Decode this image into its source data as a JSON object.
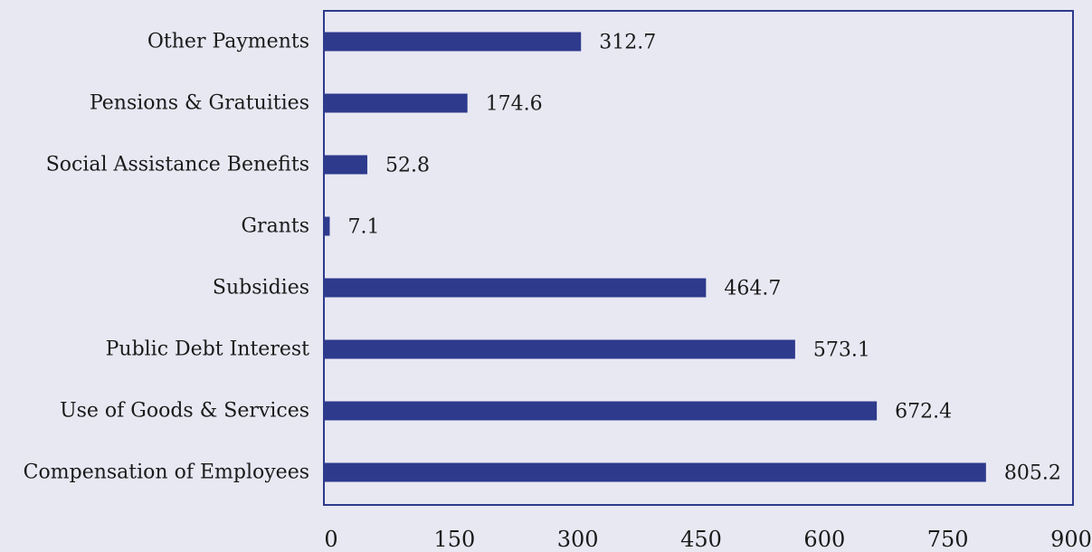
{
  "chart_data": {
    "type": "bar",
    "orientation": "horizontal",
    "categories": [
      "Compensation of Employees",
      "Use of Goods & Services",
      "Public Debt Interest",
      "Subsidies",
      "Grants",
      "Social Assistance Benefits",
      "Pensions & Gratuities",
      "Other Payments"
    ],
    "values": [
      805.2,
      672.4,
      573.1,
      464.7,
      7.1,
      52.8,
      174.6,
      312.7
    ],
    "value_labels": [
      "805.2",
      "672.4",
      "573.1",
      "464.7",
      "7.1",
      "52.8",
      "174.6",
      "312.7"
    ],
    "xlim": [
      0,
      900
    ],
    "x_ticks": [
      0,
      150,
      300,
      450,
      600,
      750,
      900
    ],
    "x_tick_labels": [
      "0",
      "150",
      "300",
      "450",
      "600",
      "750",
      "900"
    ],
    "title": "",
    "xlabel": "",
    "ylabel": "",
    "grid": false,
    "legend": false
  },
  "colors": {
    "background": "#e8e8f3",
    "bar": "#2e3a8c",
    "frame": "#2e3a8c",
    "text": "#1a1a1a"
  }
}
